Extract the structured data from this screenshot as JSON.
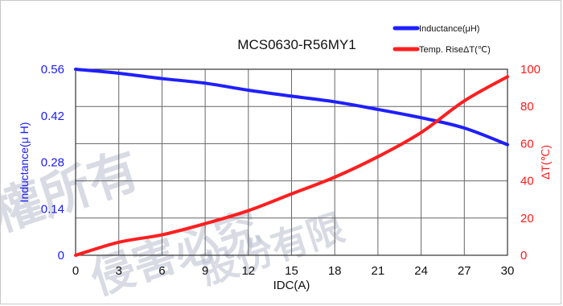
{
  "chart_data": {
    "type": "line",
    "title": "MCS0630-R56MY1",
    "xlabel": "IDC(A)",
    "ylabel_left": "Inductance(μ H)",
    "ylabel_right": "ΔT(℃)",
    "xlim": [
      0,
      30
    ],
    "ylim_left": [
      0,
      0.56
    ],
    "ylim_right": [
      0,
      100
    ],
    "x_ticks": [
      "0",
      "3",
      "6",
      "9",
      "12",
      "15",
      "18",
      "21",
      "24",
      "27",
      "30"
    ],
    "y_left_ticks": [
      "0",
      "0.14",
      "0.28",
      "0.42",
      "0.56"
    ],
    "y_right_ticks": [
      "0",
      "20",
      "40",
      "60",
      "80",
      "100"
    ],
    "grid": true,
    "legend_position": "top-right",
    "series": [
      {
        "name": "Inductance(μH)",
        "axis": "left",
        "color": "#1f1fff",
        "x": [
          0,
          3,
          6,
          9,
          12,
          15,
          18,
          21,
          24,
          27,
          30
        ],
        "y": [
          0.56,
          0.548,
          0.532,
          0.518,
          0.497,
          0.479,
          0.462,
          0.439,
          0.414,
          0.383,
          0.333
        ]
      },
      {
        "name": "Temp. RiseΔT(℃)",
        "axis": "right",
        "color": "#ff1f1f",
        "x": [
          0,
          3,
          6,
          9,
          12,
          15,
          18,
          21,
          24,
          27,
          30
        ],
        "y": [
          0,
          7,
          11,
          17,
          24,
          33,
          42,
          53,
          66,
          83,
          96
        ]
      }
    ]
  },
  "watermark": {
    "text": "版權所有 侵害必究 股份有限",
    "color": "#b9bfcf"
  }
}
